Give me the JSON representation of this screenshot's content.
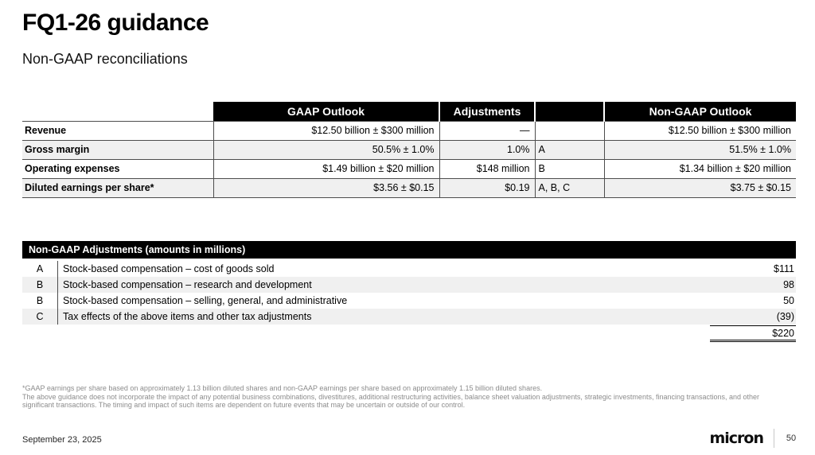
{
  "slide": {
    "title": "FQ1-26 guidance",
    "subtitle": "Non-GAAP reconciliations",
    "date": "September 23, 2025",
    "page_number": "50",
    "logo_text": "micron"
  },
  "guidance_table": {
    "headers": [
      "GAAP Outlook",
      "Adjustments",
      "Non-GAAP Outlook"
    ],
    "rows": [
      {
        "label": "Revenue",
        "gaap": "$12.50 billion ± $300 million",
        "adjustment": "—",
        "notes": "",
        "non_gaap": "$12.50 billion ± $300 million"
      },
      {
        "label": "Gross margin",
        "gaap": "50.5% ± 1.0%",
        "adjustment": "1.0%",
        "notes": "A",
        "non_gaap": "51.5% ± 1.0%"
      },
      {
        "label": "Operating expenses",
        "gaap": "$1.49 billion ± $20 million",
        "adjustment": "$148 million",
        "notes": "B",
        "non_gaap": "$1.34 billion ± $20 million"
      },
      {
        "label": "Diluted earnings per share*",
        "gaap": "$3.56 ± $0.15",
        "adjustment": "$0.19",
        "notes": "A, B, C",
        "non_gaap": "$3.75 ± $0.15"
      }
    ]
  },
  "adjustments_table": {
    "title": "Non-GAAP Adjustments (amounts in millions)",
    "rows": [
      {
        "note": "A",
        "description": "Stock-based compensation – cost of goods sold",
        "amount": "$111"
      },
      {
        "note": "B",
        "description": "Stock-based compensation – research and development",
        "amount": "98"
      },
      {
        "note": "B",
        "description": "Stock-based compensation – selling, general, and administrative",
        "amount": "50"
      },
      {
        "note": "C",
        "description": "Tax effects of the above items and other tax adjustments",
        "amount": "(39)"
      }
    ],
    "total": "$220"
  },
  "footnotes": [
    "*GAAP earnings per share based on approximately 1.13 billion diluted shares and non-GAAP earnings per share based on approximately 1.15 billion diluted shares.",
    "The above guidance does not incorporate the impact of any potential business combinations, divestitures, additional restructuring activities, balance sheet valuation adjustments, strategic investments, financing transactions, and other significant transactions. The timing and impact of such items are dependent on future events that may be uncertain or outside of our control."
  ],
  "colors": {
    "header_bg": "#000000",
    "header_text": "#ffffff",
    "row_stripe": "#f0f0f0",
    "table_border": "#4d4d4d",
    "footnote_text": "#8c8c8c"
  }
}
